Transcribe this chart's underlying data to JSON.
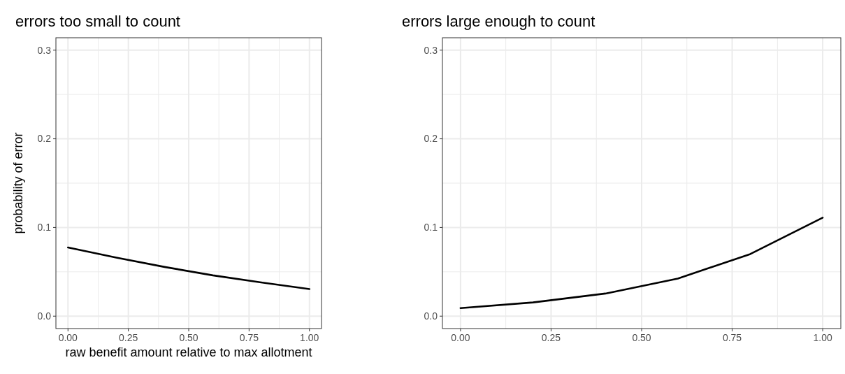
{
  "chart_data": [
    {
      "type": "line",
      "title": "errors too small to count",
      "xlabel": "raw benefit amount relative to max allotment",
      "ylabel": "probability of error",
      "x": [
        0,
        0.2,
        0.4,
        0.6,
        0.8,
        1.0
      ],
      "series": [
        {
          "color": "#000000",
          "values": [
            0.0775,
            0.066,
            0.0555,
            0.046,
            0.038,
            0.0305
          ]
        }
      ],
      "xlim": [
        -0.05,
        1.05
      ],
      "ylim": [
        -0.014,
        0.314
      ],
      "xticks": [
        {
          "value": 0,
          "label": "0.00"
        },
        {
          "value": 0.25,
          "label": "0.25"
        },
        {
          "value": 0.5,
          "label": "0.50"
        },
        {
          "value": 0.75,
          "label": "0.75"
        },
        {
          "value": 1,
          "label": "1.00"
        }
      ],
      "yticks": [
        {
          "value": 0,
          "label": "0.0"
        },
        {
          "value": 0.1,
          "label": "0.1"
        },
        {
          "value": 0.2,
          "label": "0.2"
        },
        {
          "value": 0.3,
          "label": "0.3"
        }
      ],
      "grid": true
    },
    {
      "type": "line",
      "title": "errors large enough to count",
      "x": [
        0,
        0.2,
        0.4,
        0.6,
        0.8,
        1.0
      ],
      "series": [
        {
          "color": "#000000",
          "values": [
            0.0091,
            0.0155,
            0.0255,
            0.0424,
            0.07,
            0.111
          ]
        }
      ],
      "xlim": [
        -0.05,
        1.05
      ],
      "ylim": [
        -0.014,
        0.314
      ],
      "xticks": [
        {
          "value": 0,
          "label": "0.00"
        },
        {
          "value": 0.25,
          "label": "0.25"
        },
        {
          "value": 0.5,
          "label": "0.50"
        },
        {
          "value": 0.75,
          "label": "0.75"
        },
        {
          "value": 1,
          "label": "1.00"
        }
      ],
      "yticks": [
        {
          "value": 0,
          "label": "0.0"
        },
        {
          "value": 0.1,
          "label": "0.1"
        },
        {
          "value": 0.2,
          "label": "0.2"
        },
        {
          "value": 0.3,
          "label": "0.3"
        }
      ],
      "grid": true
    }
  ]
}
